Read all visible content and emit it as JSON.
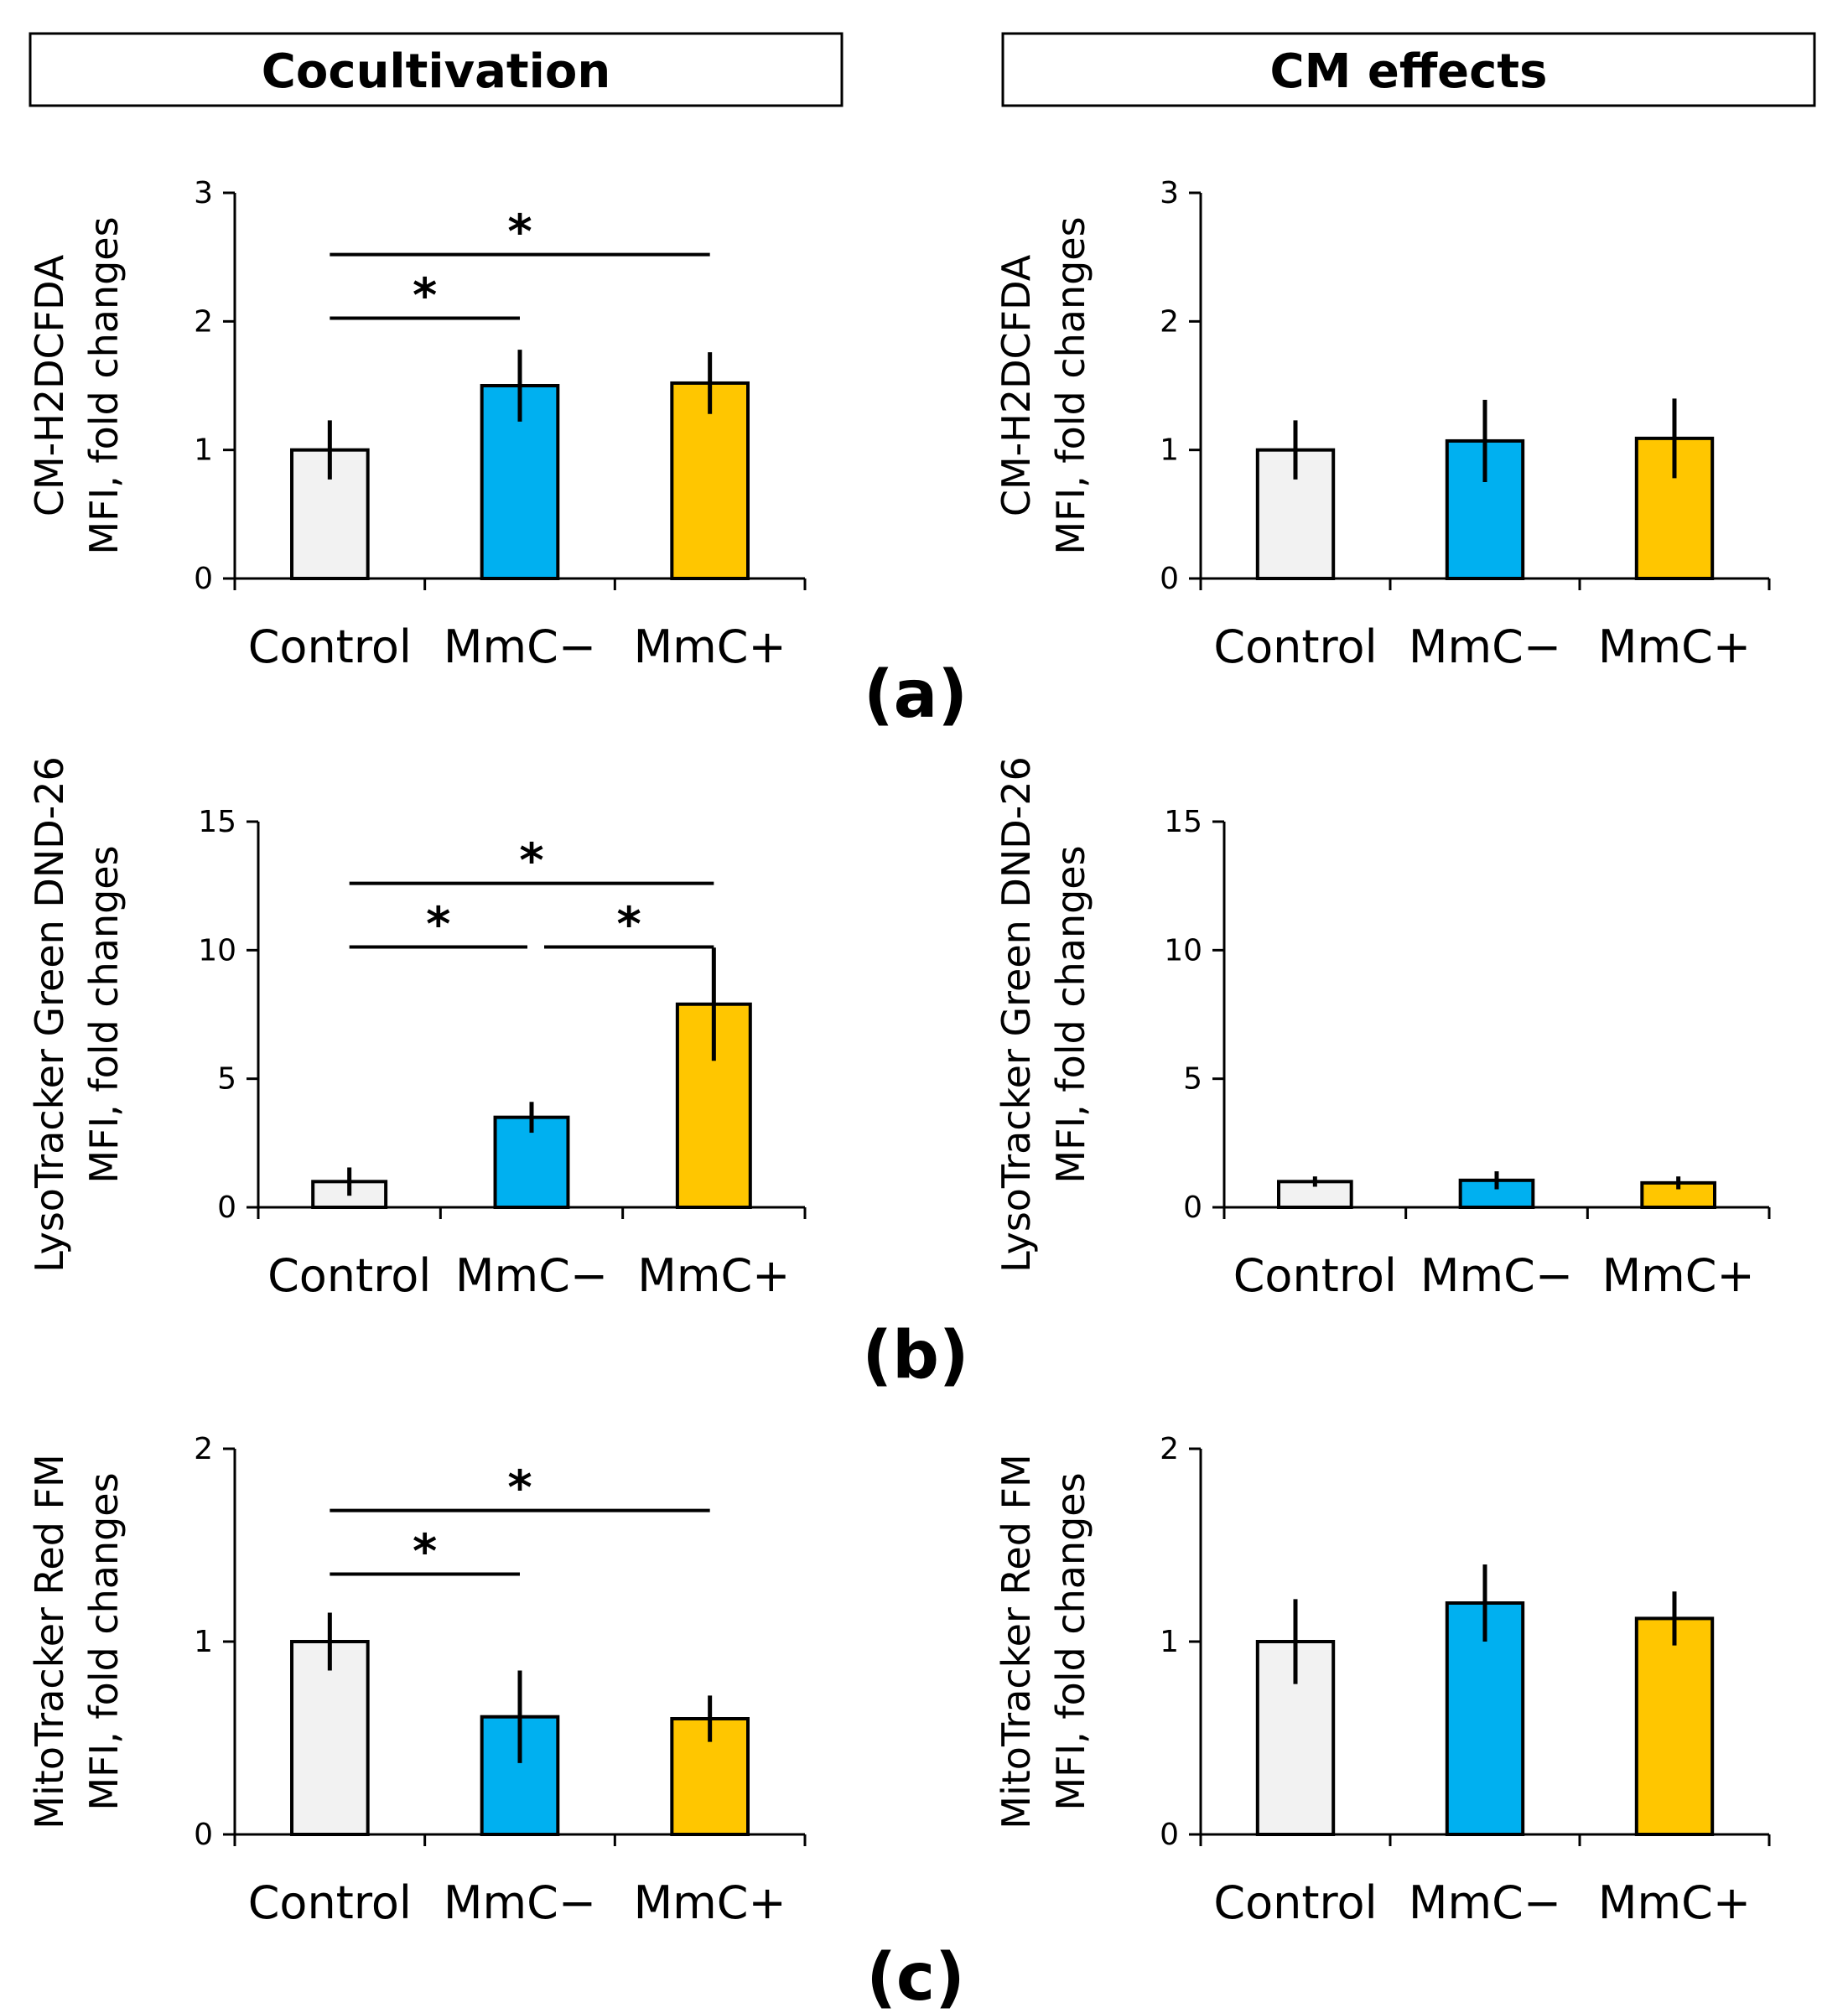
{
  "headers": {
    "left": "Cocultivation",
    "right": "CM effects"
  },
  "colors": {
    "Control": "#f2f2f2",
    "MmC−": "#00b0f0",
    "MmC+": "#ffc600"
  },
  "panel_labels": [
    "(a)",
    "(b)",
    "(c)"
  ],
  "chart_data": [
    {
      "id": "a-cocultivation",
      "type": "bar",
      "categories": [
        "Control",
        "MmC−",
        "MmC+"
      ],
      "values": [
        1.0,
        1.5,
        1.52
      ],
      "errors": [
        0.23,
        0.28,
        0.24
      ],
      "ylabel_lines": [
        "CM-H2DCFDA",
        "MFI, fold changes"
      ],
      "ylim": [
        0,
        3
      ],
      "yticks": [
        0,
        1,
        2,
        3
      ],
      "significance": [
        {
          "from": 0,
          "to": 1,
          "label": "*"
        },
        {
          "from": 0,
          "to": 2,
          "label": "*"
        }
      ]
    },
    {
      "id": "a-cm-effects",
      "type": "bar",
      "categories": [
        "Control",
        "MmC−",
        "MmC+"
      ],
      "values": [
        1.0,
        1.07,
        1.09
      ],
      "errors": [
        0.23,
        0.32,
        0.31
      ],
      "ylabel_lines": [
        "CM-H2DCFDA",
        "MFI, fold changes"
      ],
      "ylim": [
        0,
        3
      ],
      "yticks": [
        0,
        1,
        2,
        3
      ],
      "significance": []
    },
    {
      "id": "b-cocultivation",
      "type": "bar",
      "categories": [
        "Control",
        "MmC−",
        "MmC+"
      ],
      "values": [
        1.0,
        3.5,
        7.9
      ],
      "errors": [
        0.55,
        0.6,
        2.2
      ],
      "ylabel_lines": [
        "LysoTracker Green DND-26",
        "MFI, fold changes"
      ],
      "ylim": [
        0,
        15
      ],
      "yticks": [
        0,
        5,
        10,
        15
      ],
      "significance": [
        {
          "from": 0,
          "to": 1,
          "label": "*"
        },
        {
          "from": 1,
          "to": 2,
          "label": "*"
        },
        {
          "from": 0,
          "to": 2,
          "label": "*"
        }
      ]
    },
    {
      "id": "b-cm-effects",
      "type": "bar",
      "categories": [
        "Control",
        "MmC−",
        "MmC+"
      ],
      "values": [
        1.0,
        1.05,
        0.95
      ],
      "errors": [
        0.2,
        0.35,
        0.25
      ],
      "ylabel_lines": [
        "LysoTracker Green DND-26",
        "MFI, fold changes"
      ],
      "ylim": [
        0,
        15
      ],
      "yticks": [
        0,
        5,
        10,
        15
      ],
      "significance": []
    },
    {
      "id": "c-cocultivation",
      "type": "bar",
      "categories": [
        "Control",
        "MmC−",
        "MmC+"
      ],
      "values": [
        1.0,
        0.61,
        0.6
      ],
      "errors": [
        0.15,
        0.24,
        0.12
      ],
      "ylabel_lines": [
        "MitoTracker Red FM",
        "MFI, fold changes"
      ],
      "ylim": [
        0,
        2
      ],
      "yticks": [
        0,
        1,
        2
      ],
      "significance": [
        {
          "from": 0,
          "to": 1,
          "label": "*"
        },
        {
          "from": 0,
          "to": 2,
          "label": "*"
        }
      ]
    },
    {
      "id": "c-cm-effects",
      "type": "bar",
      "categories": [
        "Control",
        "MmC−",
        "MmC+"
      ],
      "values": [
        1.0,
        1.2,
        1.12
      ],
      "errors": [
        0.22,
        0.2,
        0.14
      ],
      "ylabel_lines": [
        "MitoTracker Red FM",
        "MFI, fold changes"
      ],
      "ylim": [
        0,
        2
      ],
      "yticks": [
        0,
        1,
        2
      ],
      "significance": []
    }
  ]
}
